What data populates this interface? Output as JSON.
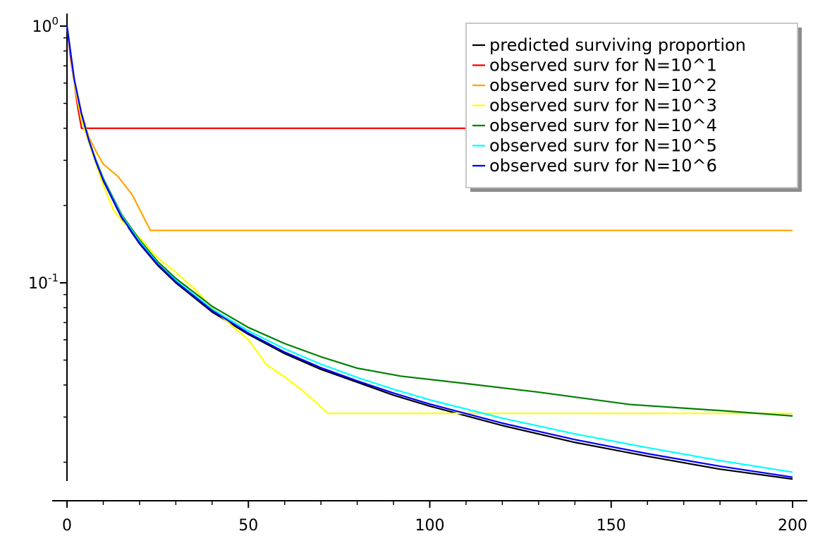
{
  "chart_data": {
    "type": "line",
    "title": "",
    "xlabel": "",
    "ylabel": "",
    "y_scale": "log",
    "xlim": [
      0,
      200
    ],
    "ylim": [
      0.019,
      1.05
    ],
    "grid": false,
    "legend_position": "top-right",
    "x_ticks": [
      {
        "value": 0,
        "label": "0"
      },
      {
        "value": 50,
        "label": "50"
      },
      {
        "value": 100,
        "label": "100"
      },
      {
        "value": 150,
        "label": "150"
      },
      {
        "value": 200,
        "label": "200"
      }
    ],
    "y_ticks": [
      {
        "value": 1,
        "base": "10",
        "exp": "0"
      },
      {
        "value": 0.1,
        "base": "10",
        "exp": "-1"
      }
    ],
    "series": [
      {
        "name": "predicted surviving proportion",
        "color": "#000000",
        "points": [
          [
            0,
            1.0
          ],
          [
            2,
            0.62
          ],
          [
            4,
            0.455
          ],
          [
            6,
            0.36
          ],
          [
            8,
            0.295
          ],
          [
            10,
            0.25
          ],
          [
            15,
            0.18
          ],
          [
            20,
            0.142
          ],
          [
            25,
            0.117
          ],
          [
            30,
            0.1
          ],
          [
            40,
            0.077
          ],
          [
            50,
            0.063
          ],
          [
            60,
            0.053
          ],
          [
            70,
            0.046
          ],
          [
            80,
            0.041
          ],
          [
            90,
            0.0365
          ],
          [
            100,
            0.0331
          ],
          [
            120,
            0.0278
          ],
          [
            140,
            0.0239
          ],
          [
            160,
            0.0211
          ],
          [
            180,
            0.0188
          ],
          [
            200,
            0.0172
          ]
        ]
      },
      {
        "name": "observed surv for N=10^1",
        "color": "#ff0000",
        "points": [
          [
            0,
            1.0
          ],
          [
            1,
            0.75
          ],
          [
            2,
            0.6
          ],
          [
            3,
            0.48
          ],
          [
            4,
            0.4
          ],
          [
            200,
            0.4
          ]
        ]
      },
      {
        "name": "observed surv for N=10^2",
        "color": "#ffa500",
        "points": [
          [
            0,
            1.0
          ],
          [
            2,
            0.62
          ],
          [
            4,
            0.46
          ],
          [
            6,
            0.37
          ],
          [
            8,
            0.325
          ],
          [
            10,
            0.29
          ],
          [
            14,
            0.26
          ],
          [
            18,
            0.22
          ],
          [
            23,
            0.16
          ],
          [
            200,
            0.16
          ]
        ]
      },
      {
        "name": "observed surv for N=10^3",
        "color": "#ffff00",
        "points": [
          [
            0,
            1.0
          ],
          [
            2,
            0.6
          ],
          [
            4,
            0.43
          ],
          [
            7,
            0.32
          ],
          [
            10,
            0.24
          ],
          [
            13,
            0.19
          ],
          [
            15,
            0.175
          ],
          [
            20,
            0.15
          ],
          [
            25,
            0.125
          ],
          [
            30,
            0.11
          ],
          [
            35,
            0.095
          ],
          [
            42,
            0.075
          ],
          [
            50,
            0.06
          ],
          [
            55,
            0.048
          ],
          [
            60,
            0.043
          ],
          [
            65,
            0.038
          ],
          [
            72,
            0.031
          ],
          [
            200,
            0.031
          ]
        ]
      },
      {
        "name": "observed surv for N=10^4",
        "color": "#008000",
        "points": [
          [
            0,
            1.0
          ],
          [
            2,
            0.62
          ],
          [
            4,
            0.455
          ],
          [
            6,
            0.36
          ],
          [
            8,
            0.3
          ],
          [
            10,
            0.255
          ],
          [
            15,
            0.185
          ],
          [
            20,
            0.147
          ],
          [
            25,
            0.121
          ],
          [
            30,
            0.104
          ],
          [
            40,
            0.081
          ],
          [
            50,
            0.067
          ],
          [
            60,
            0.058
          ],
          [
            70,
            0.0515
          ],
          [
            80,
            0.0465
          ],
          [
            92,
            0.0433
          ],
          [
            110,
            0.0405
          ],
          [
            130,
            0.0375
          ],
          [
            155,
            0.0336
          ],
          [
            180,
            0.0318
          ],
          [
            200,
            0.0303
          ]
        ]
      },
      {
        "name": "observed surv for N=10^5",
        "color": "#00ffff",
        "points": [
          [
            0,
            1.0
          ],
          [
            2,
            0.62
          ],
          [
            4,
            0.455
          ],
          [
            6,
            0.36
          ],
          [
            8,
            0.297
          ],
          [
            10,
            0.252
          ],
          [
            15,
            0.183
          ],
          [
            20,
            0.145
          ],
          [
            25,
            0.119
          ],
          [
            30,
            0.102
          ],
          [
            40,
            0.079
          ],
          [
            50,
            0.065
          ],
          [
            60,
            0.0553
          ],
          [
            70,
            0.0482
          ],
          [
            80,
            0.0428
          ],
          [
            90,
            0.0385
          ],
          [
            100,
            0.035
          ],
          [
            120,
            0.0297
          ],
          [
            140,
            0.0258
          ],
          [
            160,
            0.0228
          ],
          [
            180,
            0.0203
          ],
          [
            200,
            0.0183
          ]
        ]
      },
      {
        "name": "observed surv for N=10^6",
        "color": "#0000ff",
        "points": [
          [
            0,
            1.0
          ],
          [
            2,
            0.62
          ],
          [
            4,
            0.455
          ],
          [
            6,
            0.36
          ],
          [
            8,
            0.296
          ],
          [
            10,
            0.251
          ],
          [
            15,
            0.181
          ],
          [
            20,
            0.143
          ],
          [
            25,
            0.118
          ],
          [
            30,
            0.101
          ],
          [
            40,
            0.078
          ],
          [
            50,
            0.0637
          ],
          [
            60,
            0.0537
          ],
          [
            70,
            0.0467
          ],
          [
            80,
            0.0415
          ],
          [
            90,
            0.0372
          ],
          [
            100,
            0.0337
          ],
          [
            120,
            0.0284
          ],
          [
            140,
            0.0245
          ],
          [
            160,
            0.0216
          ],
          [
            180,
            0.0193
          ],
          [
            200,
            0.0175
          ]
        ]
      }
    ]
  }
}
